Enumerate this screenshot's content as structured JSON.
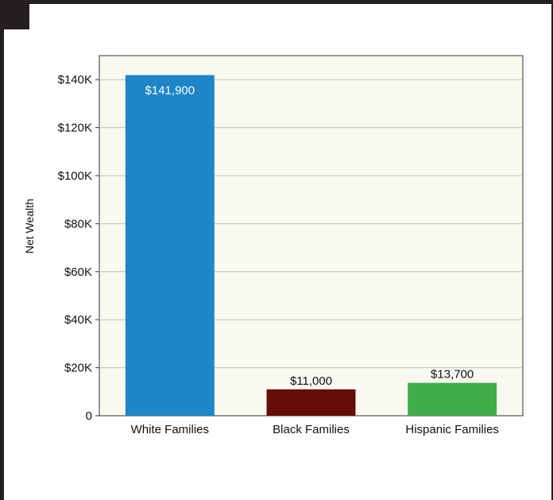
{
  "chart_data": {
    "type": "bar",
    "title": "",
    "xlabel": "",
    "ylabel": "Net Wealth",
    "ylim": [
      0,
      150000
    ],
    "yticks": [
      {
        "value": 0,
        "label": "0"
      },
      {
        "value": 20000,
        "label": "$20K"
      },
      {
        "value": 40000,
        "label": "$40K"
      },
      {
        "value": 60000,
        "label": "$60K"
      },
      {
        "value": 80000,
        "label": "$80K"
      },
      {
        "value": 100000,
        "label": "$100K"
      },
      {
        "value": 120000,
        "label": "$120K"
      },
      {
        "value": 140000,
        "label": "$140K"
      }
    ],
    "categories": [
      "White Families",
      "Black Families",
      "Hispanic Families"
    ],
    "values": [
      141900,
      11000,
      13700
    ],
    "value_labels": [
      "$141,900",
      "$11,000",
      "$13,700"
    ],
    "colors": [
      "#1e85c8",
      "#650b08",
      "#3fae49"
    ],
    "value_label_colors": [
      "#ffffff",
      "#111111",
      "#111111"
    ],
    "value_label_position": [
      "inside-top",
      "above",
      "above"
    ],
    "plot_background": "#f9f8f1",
    "grid": true,
    "legend": "none"
  }
}
